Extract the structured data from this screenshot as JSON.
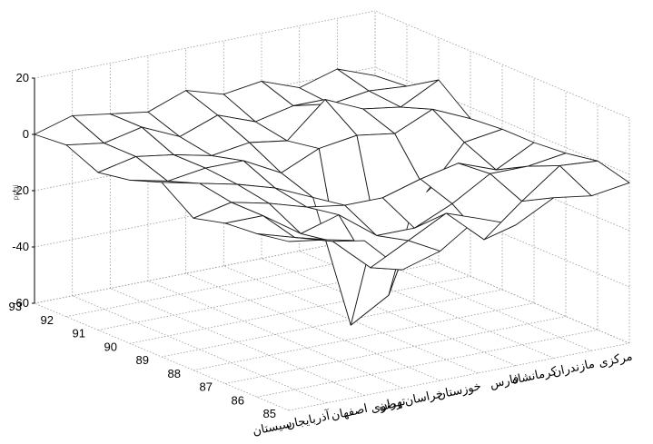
{
  "chart_data": {
    "type": "surface3d",
    "title": "",
    "zlabel": "ppgi",
    "zlim": [
      -60,
      20
    ],
    "z_ticks": [
      "20",
      "0",
      "-20",
      "-40",
      "-60"
    ],
    "years": [
      "85",
      "86",
      "87",
      "88",
      "89",
      "90",
      "91",
      "92",
      "93"
    ],
    "provinces": [
      "سیستان",
      "آذربایجان",
      "اصفهان",
      "تهران",
      "خراسان رضوی",
      "خوزستان",
      "فارس",
      "کرمانشاه",
      "مازندران",
      "مرکزی"
    ],
    "grid": true,
    "values": [
      [
        0,
        -2,
        -5,
        -18,
        -14,
        -5,
        -10,
        -3,
        -5,
        -3
      ],
      [
        -2,
        -6,
        -10,
        -22,
        -15,
        -8,
        -20,
        -9,
        1,
        0
      ],
      [
        -3,
        -3,
        -12,
        -8,
        -18,
        -18,
        -12,
        -4,
        -4,
        -2
      ],
      [
        -6,
        -3,
        -6,
        -10,
        -12,
        -12,
        -8,
        -5,
        -10,
        -3
      ],
      [
        2,
        -1,
        -4,
        -8,
        -14,
        -62,
        -54,
        -20,
        -5,
        -3
      ],
      [
        -2,
        -5,
        -3,
        -3,
        -10,
        -4,
        -2,
        -4,
        2,
        -4
      ],
      [
        -4,
        -1,
        -3,
        -6,
        -4,
        -6,
        6,
        0,
        -2,
        5
      ],
      [
        1,
        -1,
        2,
        -4,
        1,
        -4,
        -1,
        -3,
        -1,
        -2
      ],
      [
        0,
        4,
        2,
        0,
        5,
        1,
        3,
        -2,
        2,
        -3
      ]
    ]
  }
}
